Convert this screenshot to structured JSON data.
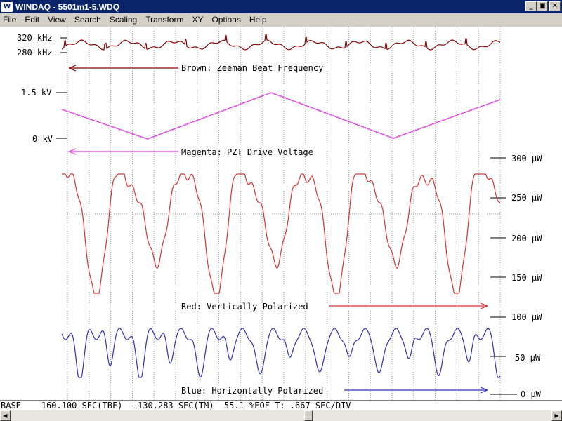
{
  "window": {
    "title": "WINDAQ - 5501m1-5.WDQ",
    "app_icon": "windaq-app-icon",
    "minimize": "_",
    "restore": "▣",
    "close": "✕"
  },
  "menu": [
    "File",
    "Edit",
    "View",
    "Search",
    "Scaling",
    "Transform",
    "XY",
    "Options",
    "Help"
  ],
  "colors": {
    "brown": "#8b0000",
    "magenta": "#e040e0",
    "red": "#e03030",
    "blue": "#3030c0",
    "grid": "#999999"
  },
  "chart_data": {
    "type": "line",
    "x_divisions": 20,
    "time_per_division": ".667 SEC/DIV",
    "channels": [
      {
        "name": "Brown: Zeeman Beat Frequency",
        "color": "#8b0000",
        "axis_labels": [
          "320 kHz",
          "280 kHz"
        ],
        "arrow": "left"
      },
      {
        "name": "Magenta: PZT Drive Voltage",
        "color": "#e040e0",
        "axis_labels": [
          "1.5 kV",
          "0 kV"
        ],
        "arrow": "left"
      },
      {
        "name": "Red: Vertically Polarized",
        "color": "#e03030",
        "axis_labels": [
          "300 µW",
          "250 µW",
          "200 µW",
          "150 µW",
          "100 µW"
        ],
        "arrow": "right"
      },
      {
        "name": "Blue: Horizontally Polarized",
        "color": "#3030c0",
        "axis_labels": [
          "50 µW",
          "0 µW"
        ],
        "arrow": "right"
      }
    ]
  },
  "status": {
    "text": "BASE    160.100 SEC(TBF)  -130.283 SEC(TM)  55.1 %EOF T: .667 SEC/DIV"
  },
  "scrollbar": {
    "left": "◀",
    "right": "▶",
    "position": 0.551
  }
}
